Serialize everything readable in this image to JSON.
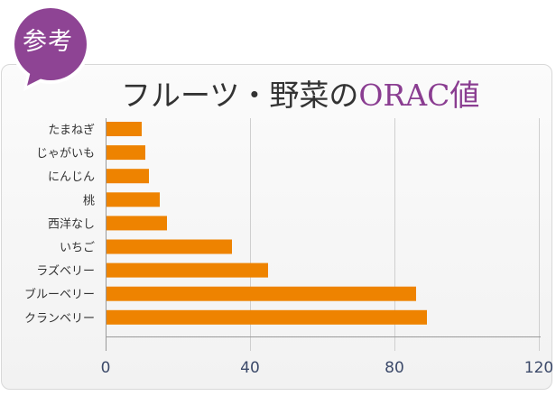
{
  "badge": {
    "text": "参考",
    "color": "#8e4494"
  },
  "title": {
    "main": "フルーツ・野菜の",
    "accent": "ORAC値"
  },
  "chart_data": {
    "type": "bar",
    "orientation": "horizontal",
    "categories": [
      "たまねぎ",
      "じゃがいも",
      "にんじん",
      "桃",
      "西洋なし",
      "いちご",
      "ラズベリー",
      "ブルーベリー",
      "クランベリー"
    ],
    "values": [
      10,
      11,
      12,
      15,
      17,
      35,
      45,
      86,
      89
    ],
    "xlim": [
      0,
      120
    ],
    "xticks": [
      0,
      40,
      80,
      120
    ],
    "grid": true,
    "bar_color": "#ee8300"
  }
}
